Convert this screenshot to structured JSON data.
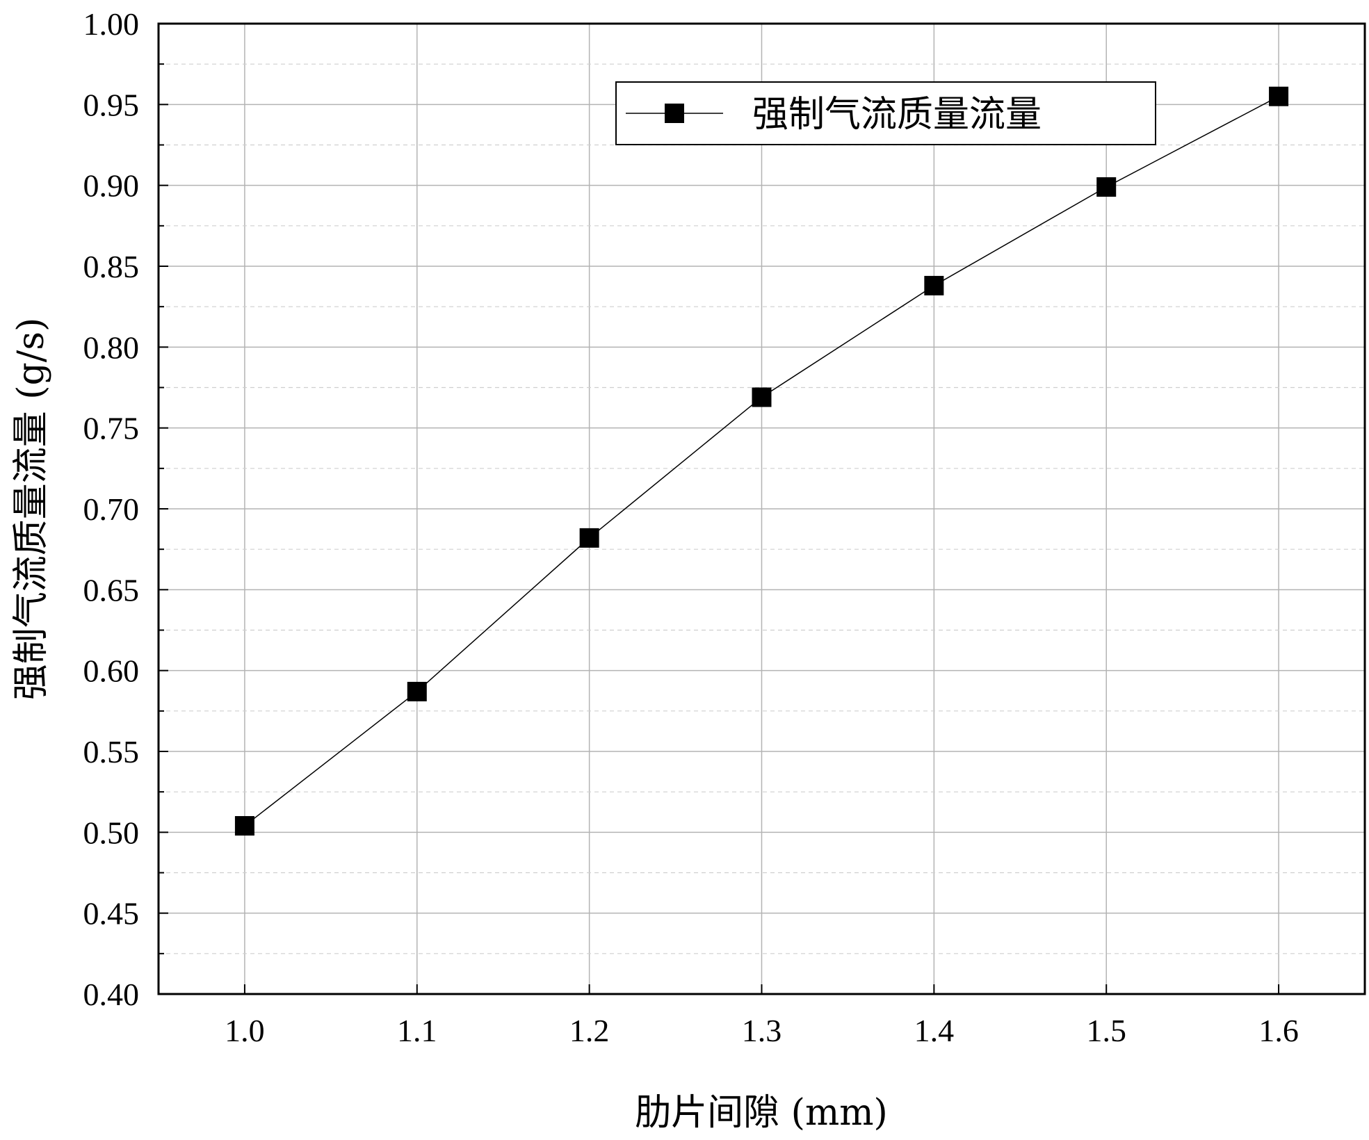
{
  "chart_data": {
    "type": "line",
    "x": [
      1.0,
      1.1,
      1.2,
      1.3,
      1.4,
      1.5,
      1.6
    ],
    "series": [
      {
        "name": "强制气流质量流量",
        "values": [
          0.504,
          0.587,
          0.682,
          0.769,
          0.838,
          0.899,
          0.955
        ],
        "marker": "square",
        "color": "#000000"
      }
    ],
    "xlabel": "肋片间隙 (mm)",
    "ylabel": "强制气流质量流量 (g/s)",
    "xlim": [
      0.95,
      1.65
    ],
    "ylim": [
      0.4,
      1.0
    ],
    "xticks": [
      "1.0",
      "1.1",
      "1.2",
      "1.3",
      "1.4",
      "1.5",
      "1.6"
    ],
    "yticks": [
      "0.40",
      "0.45",
      "0.50",
      "0.55",
      "0.60",
      "0.65",
      "0.70",
      "0.75",
      "0.80",
      "0.85",
      "0.90",
      "0.95",
      "1.00"
    ],
    "grid": true,
    "legend_position": "top-right"
  }
}
